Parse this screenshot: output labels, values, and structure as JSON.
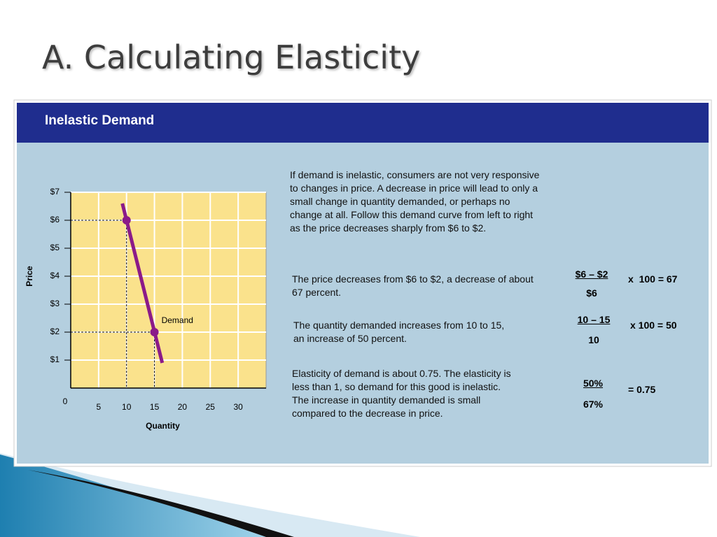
{
  "slide": {
    "title": "A. Calculating Elasticity",
    "panel_title": "Inelastic Demand",
    "intro": "If demand is inelastic, consumers are not very responsive to changes in price. A decrease in price will lead to only a small change in quantity demanded, or perhaps no change at all. Follow this demand curve from left to right as the price decreases sharply from $6 to $2.",
    "rows": [
      {
        "text": "The price decreases from $6 to $2, a decrease of about 67 percent.",
        "numerator": "$6 – $2",
        "denominator": "$6",
        "result": "x  100 = 67"
      },
      {
        "text": "The quantity demanded increases from 10 to 15,  an increase of 50 percent.",
        "numerator": "10 – 15",
        "denominator": "10",
        "result": "x 100 = 50"
      },
      {
        "text": "Elasticity of demand is about 0.75. The elasticity is less than 1, so demand for this good is inelastic. The increase in quantity demanded is small compared to the decrease in price.",
        "numerator": "50%",
        "denominator": "67%",
        "result": "= 0.75"
      }
    ]
  },
  "chart_data": {
    "type": "line",
    "x_label": "Quantity",
    "y_label": "Price",
    "series": [
      {
        "name": "Demand",
        "color": "#8b1a89",
        "x": [
          9.25,
          16.4
        ],
        "values": [
          6.6,
          0.9
        ]
      }
    ],
    "markers": {
      "color": "#8b1a89",
      "x": [
        10,
        15
      ],
      "values": [
        6,
        2
      ]
    },
    "xlim": [
      0,
      35
    ],
    "xticks": [
      0,
      5,
      10,
      15,
      20,
      25,
      30
    ],
    "ylim": [
      0,
      7
    ],
    "yticks": [
      {
        "value": 1,
        "label": "$1"
      },
      {
        "value": 2,
        "label": "$2"
      },
      {
        "value": 3,
        "label": "$3"
      },
      {
        "value": 4,
        "label": "$4"
      },
      {
        "value": 5,
        "label": "$5"
      },
      {
        "value": 6,
        "label": "$6"
      },
      {
        "value": 7,
        "label": "$7"
      }
    ],
    "grid": true
  }
}
